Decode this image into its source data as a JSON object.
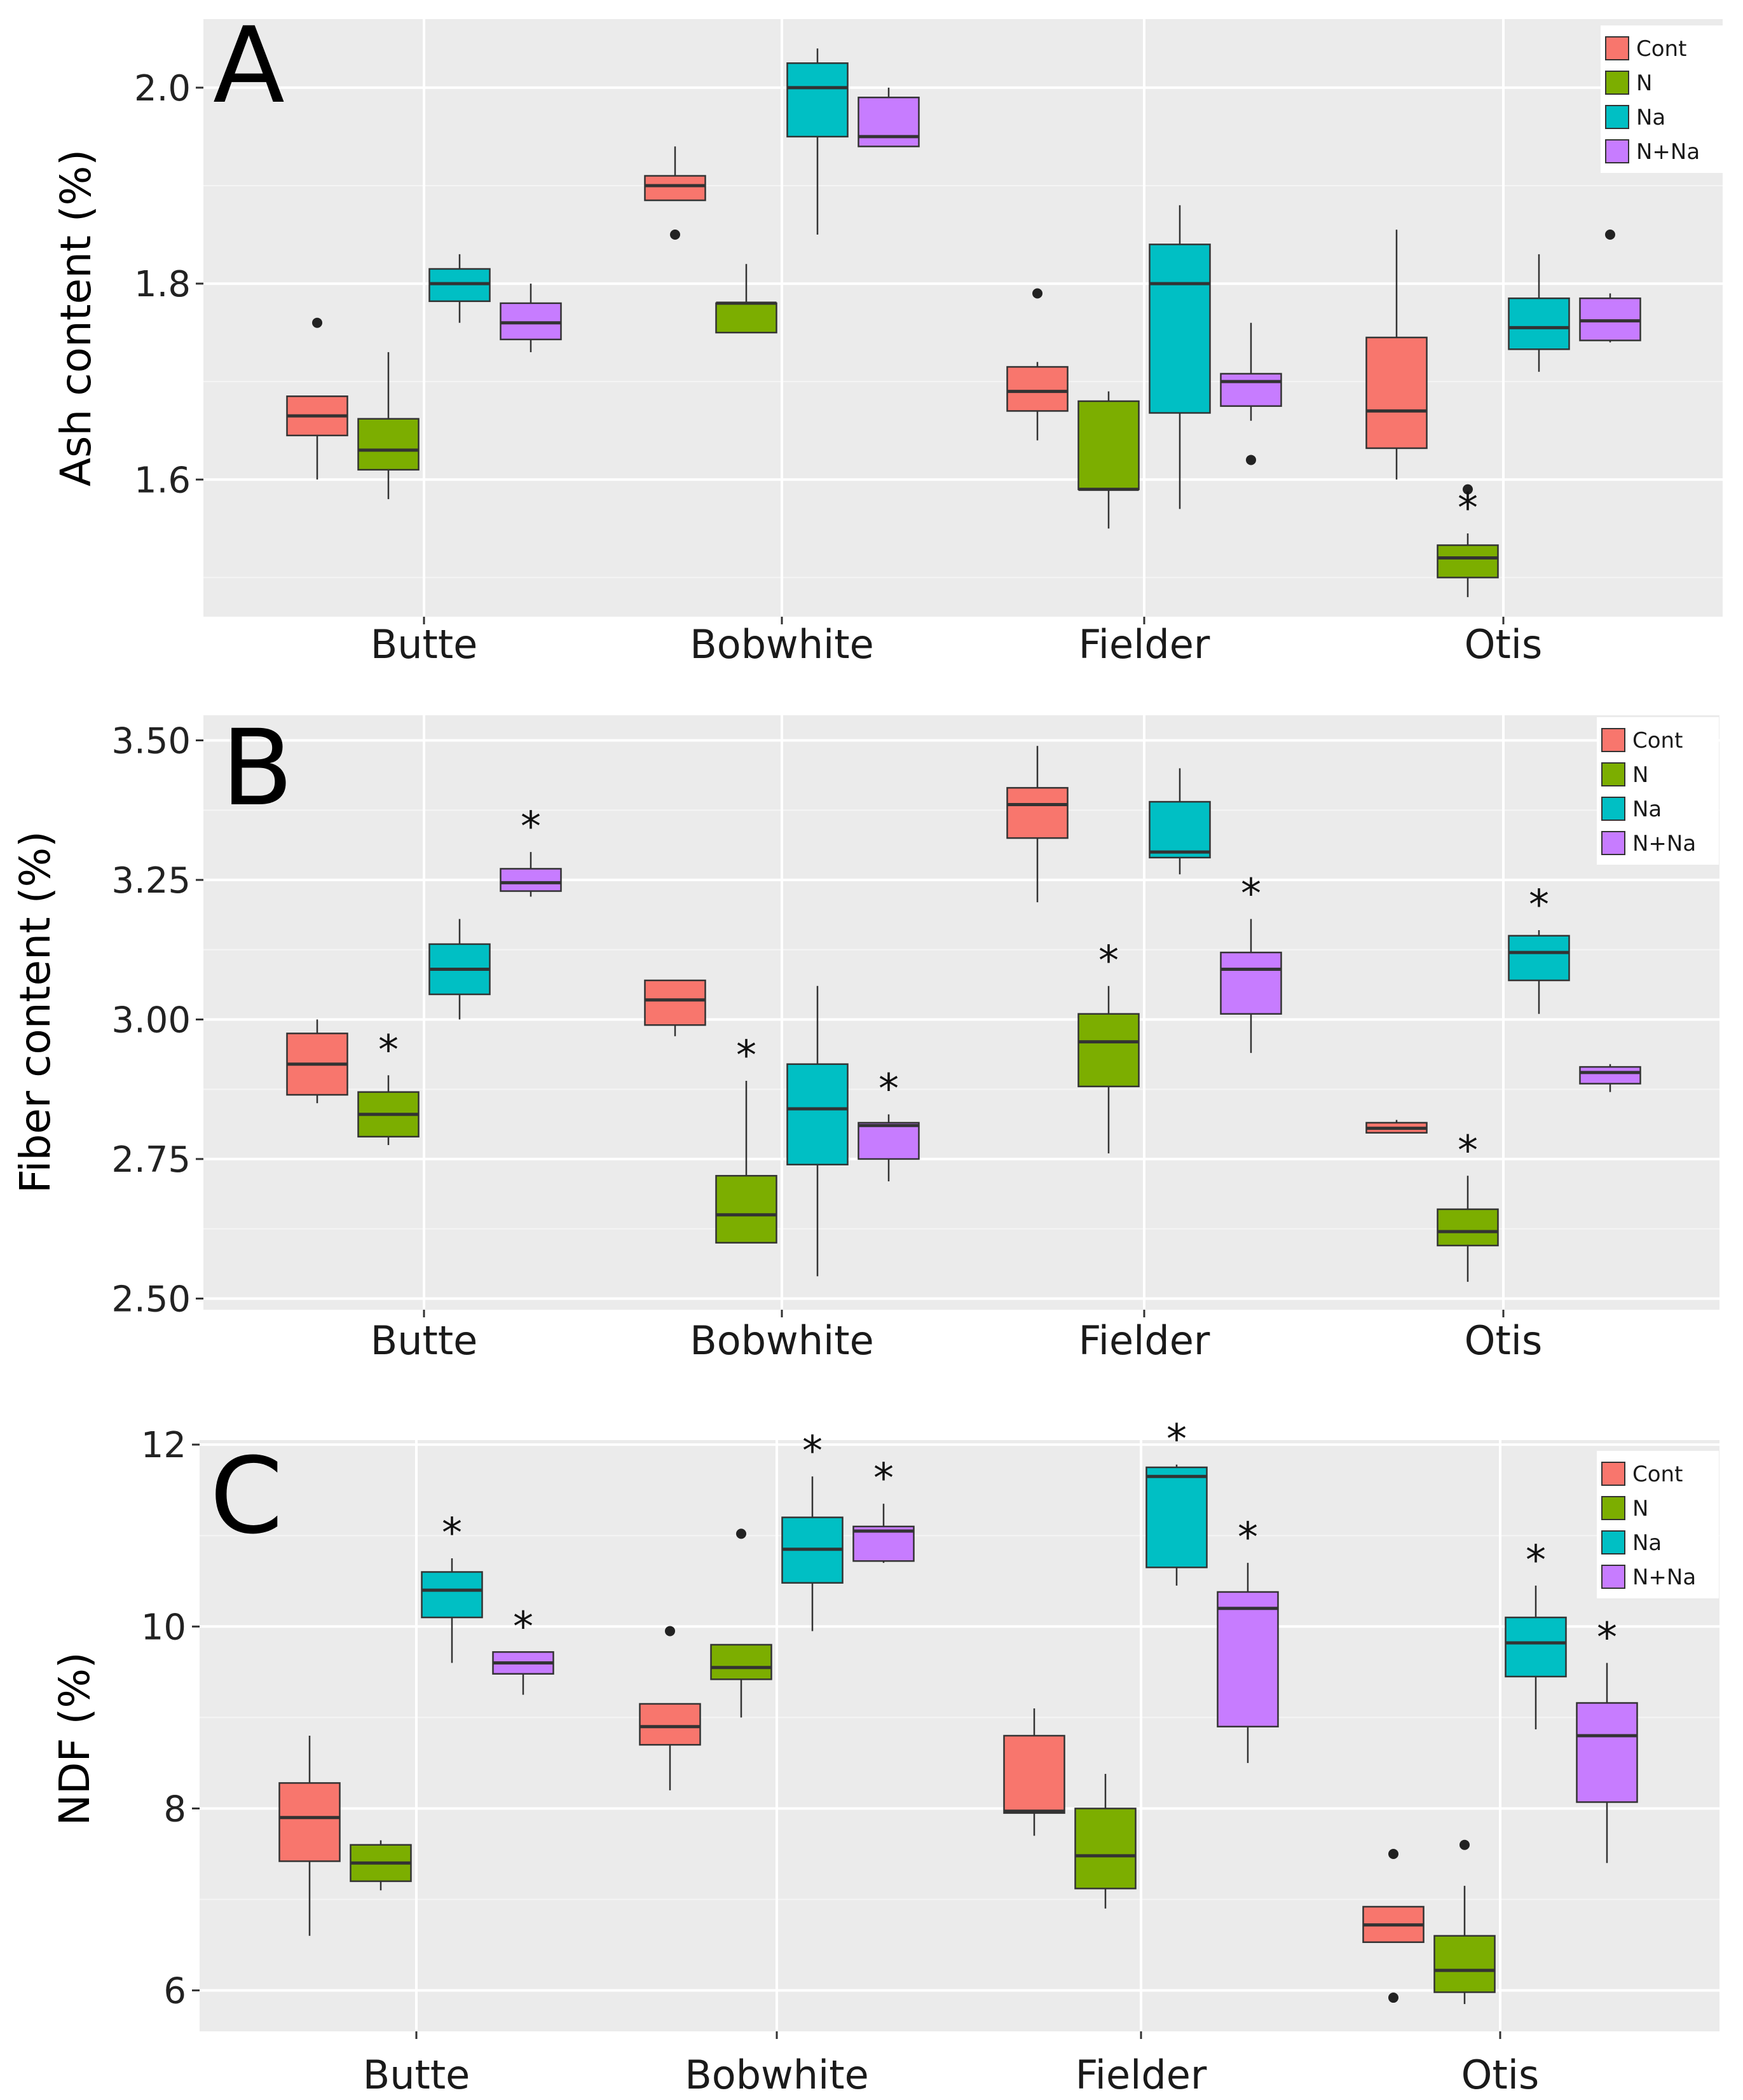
{
  "chart_data": [
    {
      "type": "box",
      "panel_label": "A",
      "ylabel": "Ash content (%)",
      "xlabel": "",
      "ylim": [
        1.46,
        2.07
      ],
      "yticks": [
        1.6,
        1.8,
        2.0
      ],
      "ytick_labels": [
        "1.6",
        "1.8",
        "2.0"
      ],
      "categories": [
        "Butte",
        "Bobwhite",
        "Fielder",
        "Otis"
      ],
      "legend_position": "top-right",
      "series": [
        {
          "name": "Cont",
          "color": "#F8766D",
          "boxes": [
            {
              "lower": 1.6,
              "q1": 1.645,
              "median": 1.665,
              "q3": 1.685,
              "upper": 1.685,
              "outliers": [
                1.76
              ],
              "sig": false
            },
            {
              "lower": 1.885,
              "q1": 1.885,
              "median": 1.9,
              "q3": 1.91,
              "upper": 1.94,
              "outliers": [
                1.85
              ],
              "sig": false
            },
            {
              "lower": 1.64,
              "q1": 1.67,
              "median": 1.69,
              "q3": 1.715,
              "upper": 1.72,
              "outliers": [
                1.79
              ],
              "sig": false
            },
            {
              "lower": 1.6,
              "q1": 1.632,
              "median": 1.67,
              "q3": 1.745,
              "upper": 1.855,
              "outliers": [],
              "sig": false
            }
          ]
        },
        {
          "name": "N",
          "color": "#7CAE00",
          "boxes": [
            {
              "lower": 1.58,
              "q1": 1.61,
              "median": 1.63,
              "q3": 1.662,
              "upper": 1.73,
              "outliers": [],
              "sig": false
            },
            {
              "lower": 1.75,
              "q1": 1.75,
              "median": 1.78,
              "q3": 1.78,
              "upper": 1.82,
              "outliers": [],
              "sig": false
            },
            {
              "lower": 1.55,
              "q1": 1.59,
              "median": 1.59,
              "q3": 1.68,
              "upper": 1.69,
              "outliers": [],
              "sig": false
            },
            {
              "lower": 1.48,
              "q1": 1.5,
              "median": 1.52,
              "q3": 1.533,
              "upper": 1.545,
              "outliers": [
                1.59
              ],
              "sig": true
            }
          ]
        },
        {
          "name": "Na",
          "color": "#00BFC4",
          "boxes": [
            {
              "lower": 1.76,
              "q1": 1.782,
              "median": 1.8,
              "q3": 1.815,
              "upper": 1.83,
              "outliers": [],
              "sig": false
            },
            {
              "lower": 1.85,
              "q1": 1.95,
              "median": 2.0,
              "q3": 2.025,
              "upper": 2.04,
              "outliers": [],
              "sig": false
            },
            {
              "lower": 1.57,
              "q1": 1.668,
              "median": 1.8,
              "q3": 1.84,
              "upper": 1.88,
              "outliers": [],
              "sig": false
            },
            {
              "lower": 1.71,
              "q1": 1.733,
              "median": 1.755,
              "q3": 1.785,
              "upper": 1.83,
              "outliers": [],
              "sig": false
            }
          ]
        },
        {
          "name": "N+Na",
          "color": "#C77CFF",
          "boxes": [
            {
              "lower": 1.73,
              "q1": 1.743,
              "median": 1.76,
              "q3": 1.78,
              "upper": 1.8,
              "outliers": [],
              "sig": false
            },
            {
              "lower": 1.94,
              "q1": 1.94,
              "median": 1.95,
              "q3": 1.99,
              "upper": 2.0,
              "outliers": [],
              "sig": false
            },
            {
              "lower": 1.66,
              "q1": 1.675,
              "median": 1.7,
              "q3": 1.708,
              "upper": 1.76,
              "outliers": [
                1.62
              ],
              "sig": false
            },
            {
              "lower": 1.74,
              "q1": 1.742,
              "median": 1.762,
              "q3": 1.785,
              "upper": 1.79,
              "outliers": [
                1.85
              ],
              "sig": false
            }
          ]
        }
      ]
    },
    {
      "type": "box",
      "panel_label": "B",
      "ylabel": "Fiber content (%)",
      "xlabel": "",
      "ylim": [
        2.48,
        3.545
      ],
      "yticks": [
        2.5,
        2.75,
        3.0,
        3.25,
        3.5
      ],
      "ytick_labels": [
        "2.50",
        "2.75",
        "3.00",
        "3.25",
        "3.50"
      ],
      "categories": [
        "Butte",
        "Bobwhite",
        "Fielder",
        "Otis"
      ],
      "legend_position": "top-right",
      "series": [
        {
          "name": "Cont",
          "color": "#F8766D",
          "boxes": [
            {
              "lower": 2.85,
              "q1": 2.865,
              "median": 2.92,
              "q3": 2.975,
              "upper": 3.0,
              "outliers": [],
              "sig": false
            },
            {
              "lower": 2.97,
              "q1": 2.99,
              "median": 3.035,
              "q3": 3.07,
              "upper": 3.07,
              "outliers": [],
              "sig": false
            },
            {
              "lower": 3.21,
              "q1": 3.325,
              "median": 3.385,
              "q3": 3.415,
              "upper": 3.49,
              "outliers": [],
              "sig": false
            },
            {
              "lower": 2.797,
              "q1": 2.797,
              "median": 2.805,
              "q3": 2.815,
              "upper": 2.82,
              "outliers": [],
              "sig": false
            }
          ]
        },
        {
          "name": "N",
          "color": "#7CAE00",
          "boxes": [
            {
              "lower": 2.775,
              "q1": 2.79,
              "median": 2.83,
              "q3": 2.87,
              "upper": 2.9,
              "outliers": [],
              "sig": true
            },
            {
              "lower": 2.6,
              "q1": 2.6,
              "median": 2.65,
              "q3": 2.72,
              "upper": 2.89,
              "outliers": [],
              "sig": true
            },
            {
              "lower": 2.76,
              "q1": 2.88,
              "median": 2.96,
              "q3": 3.01,
              "upper": 3.06,
              "outliers": [],
              "sig": true
            },
            {
              "lower": 2.53,
              "q1": 2.595,
              "median": 2.62,
              "q3": 2.66,
              "upper": 2.72,
              "outliers": [],
              "sig": true
            }
          ]
        },
        {
          "name": "Na",
          "color": "#00BFC4",
          "boxes": [
            {
              "lower": 3.0,
              "q1": 3.045,
              "median": 3.09,
              "q3": 3.135,
              "upper": 3.18,
              "outliers": [],
              "sig": false
            },
            {
              "lower": 2.54,
              "q1": 2.74,
              "median": 2.84,
              "q3": 2.92,
              "upper": 3.06,
              "outliers": [],
              "sig": false
            },
            {
              "lower": 3.26,
              "q1": 3.29,
              "median": 3.3,
              "q3": 3.39,
              "upper": 3.45,
              "outliers": [],
              "sig": false
            },
            {
              "lower": 3.01,
              "q1": 3.07,
              "median": 3.12,
              "q3": 3.15,
              "upper": 3.16,
              "outliers": [],
              "sig": true
            }
          ]
        },
        {
          "name": "N+Na",
          "color": "#C77CFF",
          "boxes": [
            {
              "lower": 3.22,
              "q1": 3.23,
              "median": 3.245,
              "q3": 3.27,
              "upper": 3.3,
              "outliers": [],
              "sig": true
            },
            {
              "lower": 2.71,
              "q1": 2.75,
              "median": 2.81,
              "q3": 2.815,
              "upper": 2.83,
              "outliers": [],
              "sig": true
            },
            {
              "lower": 2.94,
              "q1": 3.01,
              "median": 3.09,
              "q3": 3.12,
              "upper": 3.18,
              "outliers": [],
              "sig": true
            },
            {
              "lower": 2.87,
              "q1": 2.885,
              "median": 2.905,
              "q3": 2.915,
              "upper": 2.92,
              "outliers": [],
              "sig": false
            }
          ]
        }
      ]
    },
    {
      "type": "box",
      "panel_label": "C",
      "ylabel": "NDF (%)",
      "xlabel": "",
      "ylim": [
        5.55,
        12.05
      ],
      "yticks": [
        6,
        8,
        10,
        12
      ],
      "ytick_labels": [
        "6",
        "8",
        "10",
        "12"
      ],
      "categories": [
        "Butte",
        "Bobwhite",
        "Fielder",
        "Otis"
      ],
      "legend_position": "top-right",
      "series": [
        {
          "name": "Cont",
          "color": "#F8766D",
          "boxes": [
            {
              "lower": 6.6,
              "q1": 7.42,
              "median": 7.9,
              "q3": 8.28,
              "upper": 8.8,
              "outliers": [],
              "sig": false
            },
            {
              "lower": 8.2,
              "q1": 8.7,
              "median": 8.9,
              "q3": 9.15,
              "upper": 9.15,
              "outliers": [
                9.95
              ],
              "sig": false
            },
            {
              "lower": 7.7,
              "q1": 7.95,
              "median": 7.97,
              "q3": 8.8,
              "upper": 9.1,
              "outliers": [],
              "sig": false
            },
            {
              "lower": 6.53,
              "q1": 6.53,
              "median": 6.72,
              "q3": 6.92,
              "upper": 6.92,
              "outliers": [
                7.5,
                5.92
              ],
              "sig": false
            }
          ]
        },
        {
          "name": "N",
          "color": "#7CAE00",
          "boxes": [
            {
              "lower": 7.1,
              "q1": 7.2,
              "median": 7.4,
              "q3": 7.6,
              "upper": 7.65,
              "outliers": [],
              "sig": false
            },
            {
              "lower": 9.0,
              "q1": 9.42,
              "median": 9.55,
              "q3": 9.8,
              "upper": 9.8,
              "outliers": [
                11.02
              ],
              "sig": false
            },
            {
              "lower": 6.9,
              "q1": 7.12,
              "median": 7.48,
              "q3": 8.0,
              "upper": 8.38,
              "outliers": [],
              "sig": false
            },
            {
              "lower": 5.85,
              "q1": 5.98,
              "median": 6.22,
              "q3": 6.6,
              "upper": 7.15,
              "outliers": [
                7.6
              ],
              "sig": false
            }
          ]
        },
        {
          "name": "Na",
          "color": "#00BFC4",
          "boxes": [
            {
              "lower": 9.6,
              "q1": 10.1,
              "median": 10.4,
              "q3": 10.6,
              "upper": 10.75,
              "outliers": [],
              "sig": true
            },
            {
              "lower": 9.95,
              "q1": 10.48,
              "median": 10.85,
              "q3": 11.2,
              "upper": 11.65,
              "outliers": [],
              "sig": true
            },
            {
              "lower": 10.45,
              "q1": 10.65,
              "median": 11.65,
              "q3": 11.75,
              "upper": 11.78,
              "outliers": [],
              "sig": true
            },
            {
              "lower": 8.87,
              "q1": 9.45,
              "median": 9.82,
              "q3": 10.1,
              "upper": 10.45,
              "outliers": [],
              "sig": true
            }
          ]
        },
        {
          "name": "N+Na",
          "color": "#C77CFF",
          "boxes": [
            {
              "lower": 9.25,
              "q1": 9.48,
              "median": 9.6,
              "q3": 9.72,
              "upper": 9.72,
              "outliers": [],
              "sig": true
            },
            {
              "lower": 10.7,
              "q1": 10.72,
              "median": 11.05,
              "q3": 11.1,
              "upper": 11.35,
              "outliers": [],
              "sig": true
            },
            {
              "lower": 8.5,
              "q1": 8.9,
              "median": 10.2,
              "q3": 10.38,
              "upper": 10.7,
              "outliers": [],
              "sig": true
            },
            {
              "lower": 7.4,
              "q1": 8.07,
              "median": 8.8,
              "q3": 9.16,
              "upper": 9.6,
              "outliers": [],
              "sig": true
            }
          ]
        }
      ]
    }
  ]
}
